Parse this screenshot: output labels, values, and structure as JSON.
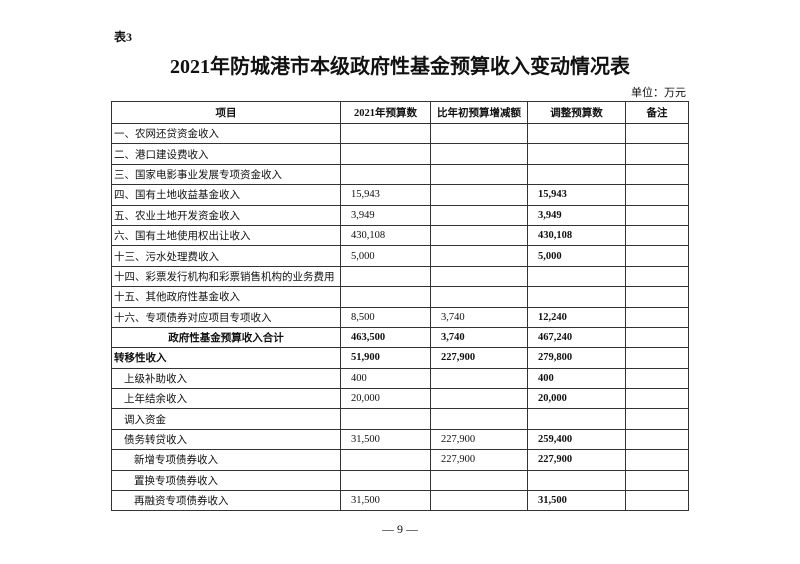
{
  "header": {
    "label": "表3",
    "title": "2021年防城港市本级政府性基金预算收入变动情况表",
    "unit": "单位：万元"
  },
  "table": {
    "columns": [
      "项目",
      "2021年预算数",
      "比年初预算增减额",
      "调整预算数",
      "备注"
    ],
    "rows": [
      {
        "cells": [
          "一、农网还贷资金收入",
          null,
          null,
          null,
          null
        ]
      },
      {
        "cells": [
          "二、港口建设费收入",
          null,
          null,
          null,
          null
        ]
      },
      {
        "cells": [
          "三、国家电影事业发展专项资金收入",
          null,
          null,
          null,
          null
        ]
      },
      {
        "cells": [
          "四、国有土地收益基金收入",
          "15,943",
          null,
          "15,943",
          null
        ]
      },
      {
        "cells": [
          "五、农业土地开发资金收入",
          "3,949",
          null,
          "3,949",
          null
        ]
      },
      {
        "cells": [
          "六、国有土地使用权出让收入",
          "430,108",
          null,
          "430,108",
          null
        ]
      },
      {
        "cells": [
          "十三、污水处理费收入",
          "5,000",
          null,
          "5,000",
          null
        ]
      },
      {
        "cells": [
          "十四、彩票发行机构和彩票销售机构的业务费用",
          null,
          null,
          null,
          null
        ]
      },
      {
        "cells": [
          "十五、其他政府性基金收入",
          null,
          null,
          null,
          null
        ]
      },
      {
        "cells": [
          "十六、专项债券对应项目专项收入",
          "8,500",
          "3,740",
          "12,240",
          null
        ]
      },
      {
        "cells": [
          "政府性基金预算收入合计",
          "463,500",
          "3,740",
          "467,240",
          null
        ],
        "bold": true,
        "center": true
      },
      {
        "cells": [
          "转移性收入",
          "51,900",
          "227,900",
          "279,800",
          null
        ],
        "bold": true
      },
      {
        "cells": [
          "上级补助收入",
          "400",
          null,
          "400",
          null
        ],
        "indent": 1
      },
      {
        "cells": [
          "上年结余收入",
          "20,000",
          null,
          "20,000",
          null
        ],
        "indent": 1
      },
      {
        "cells": [
          "调入资金",
          null,
          null,
          null,
          null
        ],
        "indent": 1
      },
      {
        "cells": [
          "债务转贷收入",
          "31,500",
          "227,900",
          "259,400",
          null
        ],
        "indent": 1
      },
      {
        "cells": [
          "新增专项债券收入",
          null,
          "227,900",
          "227,900",
          null
        ],
        "indent": 2
      },
      {
        "cells": [
          "置换专项债券收入",
          null,
          null,
          null,
          null
        ],
        "indent": 2
      },
      {
        "cells": [
          "再融资专项债券收入",
          "31,500",
          null,
          "31,500",
          null
        ],
        "indent": 2
      }
    ]
  },
  "footer": {
    "page": "— 9 —"
  }
}
